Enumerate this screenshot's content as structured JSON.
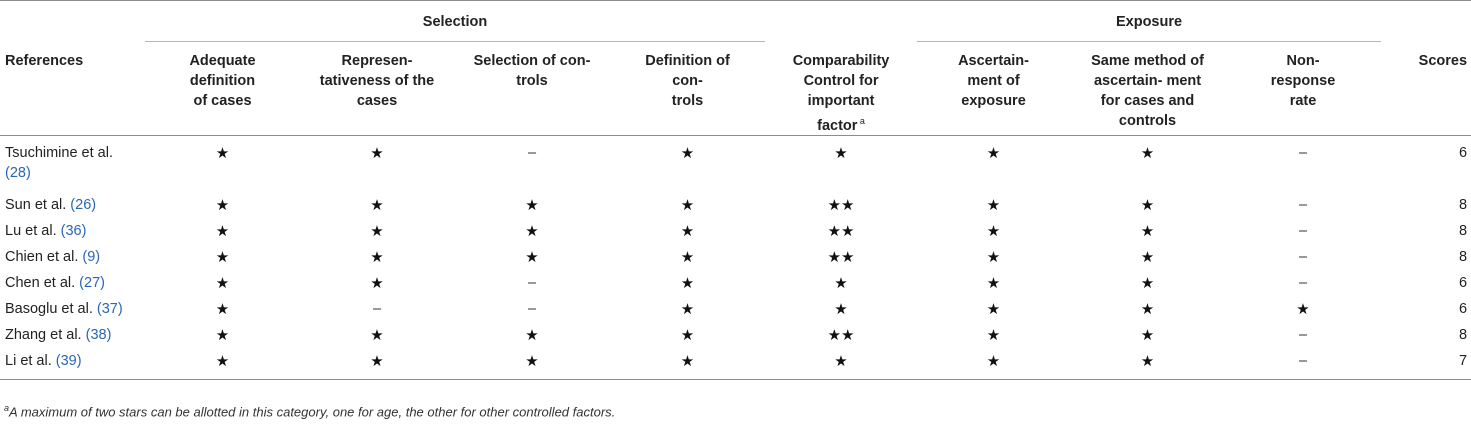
{
  "table": {
    "groups": {
      "selection": "Selection",
      "exposure": "Exposure"
    },
    "headers": {
      "references": "References",
      "adequate": [
        "Adequate",
        "definition",
        "of cases"
      ],
      "representativeness": [
        "Represen-",
        "tativeness of the",
        "cases"
      ],
      "selection_controls": [
        "Selection of con-",
        "trols"
      ],
      "definition_controls": [
        "Definition of",
        "con-",
        "trols"
      ],
      "comparability": [
        "Comparability",
        "Control for",
        "important",
        "factor"
      ],
      "comparability_sup": "a",
      "ascertainment": [
        "Ascertain-",
        "ment of",
        "exposure"
      ],
      "same_method": [
        "Same method of",
        "ascertain- ment",
        "for cases and",
        "controls"
      ],
      "nonresponse": [
        "Non-",
        "response",
        "rate"
      ],
      "scores": "Scores"
    },
    "rows": [
      {
        "ref": "Tsuchimine et al.",
        "cite": "(28)",
        "cells": [
          "★",
          "★",
          "–",
          "★",
          "★",
          "★",
          "★",
          "–"
        ],
        "score": "6"
      },
      {
        "ref": "Sun et al. ",
        "cite": "(26)",
        "cells": [
          "★",
          "★",
          "★",
          "★",
          "★★",
          "★",
          "★",
          "–"
        ],
        "score": "8"
      },
      {
        "ref": "Lu et al. ",
        "cite": "(36)",
        "cells": [
          "★",
          "★",
          "★",
          "★",
          "★★",
          "★",
          "★",
          "–"
        ],
        "score": "8"
      },
      {
        "ref": "Chien et al. ",
        "cite": "(9)",
        "cells": [
          "★",
          "★",
          "★",
          "★",
          "★★",
          "★",
          "★",
          "–"
        ],
        "score": "8"
      },
      {
        "ref": "Chen et al. ",
        "cite": "(27)",
        "cells": [
          "★",
          "★",
          "–",
          "★",
          "★",
          "★",
          "★",
          "–"
        ],
        "score": "6"
      },
      {
        "ref": "Basoglu et al. ",
        "cite": "(37)",
        "cells": [
          "★",
          "–",
          "–",
          "★",
          "★",
          "★",
          "★",
          "★"
        ],
        "score": "6"
      },
      {
        "ref": "Zhang et al. ",
        "cite": "(38)",
        "cells": [
          "★",
          "★",
          "★",
          "★",
          "★★",
          "★",
          "★",
          "–"
        ],
        "score": "8"
      },
      {
        "ref": "Li et al. ",
        "cite": "(39)",
        "cells": [
          "★",
          "★",
          "★",
          "★",
          "★",
          "★",
          "★",
          "–"
        ],
        "score": "7"
      }
    ],
    "footnote_marker": "a",
    "footnote": "A maximum of two stars can be allotted in this category, one for age, the other for other controlled factors."
  }
}
